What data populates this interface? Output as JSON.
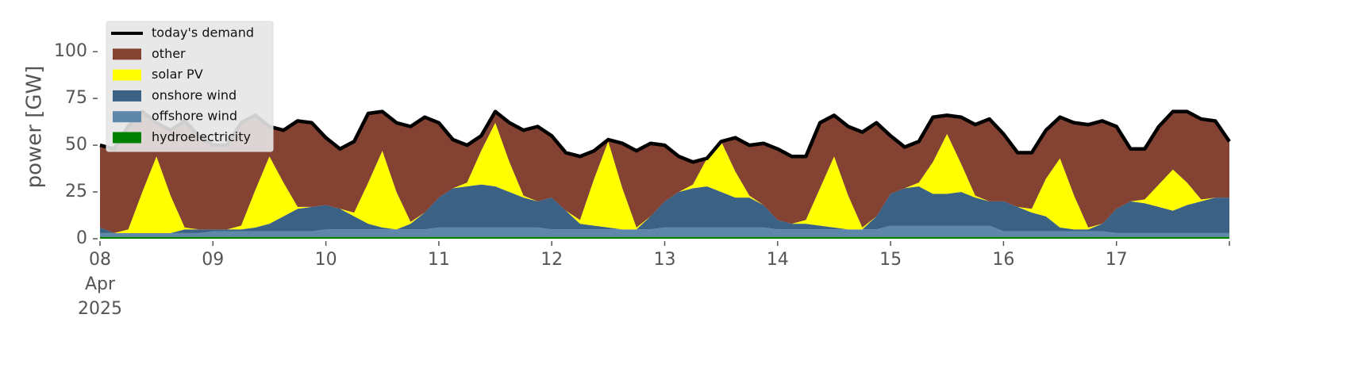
{
  "chart_data": {
    "type": "stacked_area",
    "ylabel": "power [GW]",
    "xlim": [
      8,
      18
    ],
    "ylim": [
      0,
      120
    ],
    "yticks": [
      0,
      25,
      50,
      75,
      100
    ],
    "xticks": [
      {
        "value": 8,
        "label": "08",
        "month": "Apr",
        "year": "2025"
      },
      {
        "value": 9,
        "label": "09"
      },
      {
        "value": 10,
        "label": "10"
      },
      {
        "value": 11,
        "label": "11"
      },
      {
        "value": 12,
        "label": "12"
      },
      {
        "value": 13,
        "label": "13"
      },
      {
        "value": 14,
        "label": "14"
      },
      {
        "value": 15,
        "label": "15"
      },
      {
        "value": 16,
        "label": "16"
      },
      {
        "value": 17,
        "label": "17"
      },
      {
        "value": 18,
        "label": null
      }
    ],
    "x": [
      8,
      8.125,
      8.25,
      8.375,
      8.5,
      8.625,
      8.75,
      8.875,
      9,
      9.125,
      9.25,
      9.375,
      9.5,
      9.625,
      9.75,
      9.875,
      10,
      10.125,
      10.25,
      10.375,
      10.5,
      10.625,
      10.75,
      10.875,
      11,
      11.125,
      11.25,
      11.375,
      11.5,
      11.625,
      11.75,
      11.875,
      12,
      12.125,
      12.25,
      12.375,
      12.5,
      12.625,
      12.75,
      12.875,
      13,
      13.125,
      13.25,
      13.375,
      13.5,
      13.625,
      13.75,
      13.875,
      14,
      14.125,
      14.25,
      14.375,
      14.5,
      14.625,
      14.75,
      14.875,
      15,
      15.125,
      15.25,
      15.375,
      15.5,
      15.625,
      15.75,
      15.875,
      16,
      16.125,
      16.25,
      16.375,
      16.5,
      16.625,
      16.75,
      16.875,
      17,
      17.125,
      17.25,
      17.375,
      17.5,
      17.625,
      17.75,
      17.875,
      18
    ],
    "line": {
      "name": "today's demand",
      "color": "#000000",
      "values": [
        50,
        48,
        60,
        68,
        62,
        58,
        63,
        55,
        50,
        50,
        62,
        66,
        60,
        58,
        63,
        62,
        54,
        48,
        52,
        67,
        68,
        62,
        60,
        65,
        62,
        53,
        50,
        55,
        68,
        62,
        58,
        60,
        55,
        46,
        44,
        47,
        53,
        51,
        47,
        51,
        50,
        44,
        41,
        43,
        52,
        54,
        50,
        51,
        48,
        44,
        44,
        62,
        66,
        60,
        57,
        62,
        55,
        49,
        52,
        65,
        66,
        65,
        61,
        64,
        56,
        46,
        46,
        58,
        65,
        62,
        61,
        63,
        60,
        48,
        48,
        60,
        68,
        68,
        64,
        63,
        52
      ]
    },
    "series": [
      {
        "name": "other",
        "color": "#834232",
        "values": [
          44,
          45,
          55,
          43,
          18,
          35,
          57,
          50,
          45,
          45,
          55,
          40,
          16,
          28,
          46,
          45,
          36,
          32,
          38,
          37,
          21,
          37,
          51,
          51,
          40,
          26,
          20,
          8,
          6,
          21,
          35,
          40,
          33,
          31,
          34,
          15,
          1,
          24,
          41,
          39,
          30,
          19,
          12,
          0,
          0,
          18,
          27,
          33,
          38,
          36,
          34,
          35,
          22,
          37,
          51,
          50,
          31,
          22,
          22,
          24,
          10,
          25,
          38,
          44,
          36,
          29,
          30,
          26,
          22,
          39,
          55,
          55,
          44,
          28,
          27,
          31,
          31,
          38,
          43,
          41,
          30
        ]
      },
      {
        "name": "solar PV",
        "color": "#ffff00",
        "values": [
          0,
          0,
          2,
          22,
          41,
          20,
          1,
          0,
          0,
          0,
          2,
          20,
          36,
          18,
          1,
          0,
          0,
          0,
          2,
          22,
          41,
          20,
          1,
          0,
          0,
          0,
          2,
          18,
          34,
          16,
          1,
          0,
          0,
          0,
          2,
          25,
          46,
          22,
          1,
          0,
          0,
          0,
          2,
          15,
          27,
          14,
          1,
          0,
          0,
          0,
          2,
          20,
          38,
          18,
          1,
          0,
          0,
          0,
          2,
          17,
          32,
          15,
          1,
          0,
          0,
          0,
          2,
          20,
          37,
          18,
          1,
          0,
          0,
          0,
          2,
          12,
          22,
          12,
          1,
          0,
          0
        ]
      },
      {
        "name": "onshore wind",
        "color": "#3b6184",
        "values": [
          3,
          0,
          0,
          0,
          0,
          0,
          2,
          2,
          1,
          1,
          1,
          2,
          4,
          8,
          12,
          13,
          13,
          11,
          7,
          3,
          1,
          0,
          3,
          9,
          16,
          21,
          22,
          23,
          22,
          19,
          16,
          14,
          17,
          10,
          3,
          2,
          1,
          0,
          0,
          7,
          14,
          19,
          21,
          22,
          19,
          16,
          16,
          12,
          5,
          3,
          3,
          2,
          1,
          0,
          0,
          7,
          17,
          20,
          21,
          17,
          17,
          18,
          15,
          13,
          16,
          13,
          10,
          8,
          2,
          1,
          1,
          4,
          13,
          17,
          16,
          14,
          12,
          15,
          17,
          19,
          19
        ]
      },
      {
        "name": "offshore wind",
        "color": "#5f87aa",
        "values": [
          2,
          2,
          2,
          2,
          2,
          2,
          2,
          2,
          3,
          3,
          3,
          3,
          3,
          3,
          3,
          3,
          4,
          4,
          4,
          4,
          4,
          4,
          4,
          4,
          5,
          5,
          5,
          5,
          5,
          5,
          5,
          5,
          4,
          4,
          4,
          4,
          4,
          4,
          4,
          4,
          5,
          5,
          5,
          5,
          5,
          5,
          5,
          5,
          4,
          4,
          4,
          4,
          4,
          4,
          4,
          4,
          6,
          6,
          6,
          6,
          6,
          6,
          6,
          6,
          3,
          3,
          3,
          3,
          3,
          3,
          3,
          3,
          2,
          2,
          2,
          2,
          2,
          2,
          2,
          2,
          2
        ]
      },
      {
        "name": "hydroelectricity",
        "color": "#008000",
        "values": [
          1,
          1,
          1,
          1,
          1,
          1,
          1,
          1,
          1,
          1,
          1,
          1,
          1,
          1,
          1,
          1,
          1,
          1,
          1,
          1,
          1,
          1,
          1,
          1,
          1,
          1,
          1,
          1,
          1,
          1,
          1,
          1,
          1,
          1,
          1,
          1,
          1,
          1,
          1,
          1,
          1,
          1,
          1,
          1,
          1,
          1,
          1,
          1,
          1,
          1,
          1,
          1,
          1,
          1,
          1,
          1,
          1,
          1,
          1,
          1,
          1,
          1,
          1,
          1,
          1,
          1,
          1,
          1,
          1,
          1,
          1,
          1,
          1,
          1,
          1,
          1,
          1,
          1,
          1,
          1,
          1
        ]
      }
    ]
  }
}
